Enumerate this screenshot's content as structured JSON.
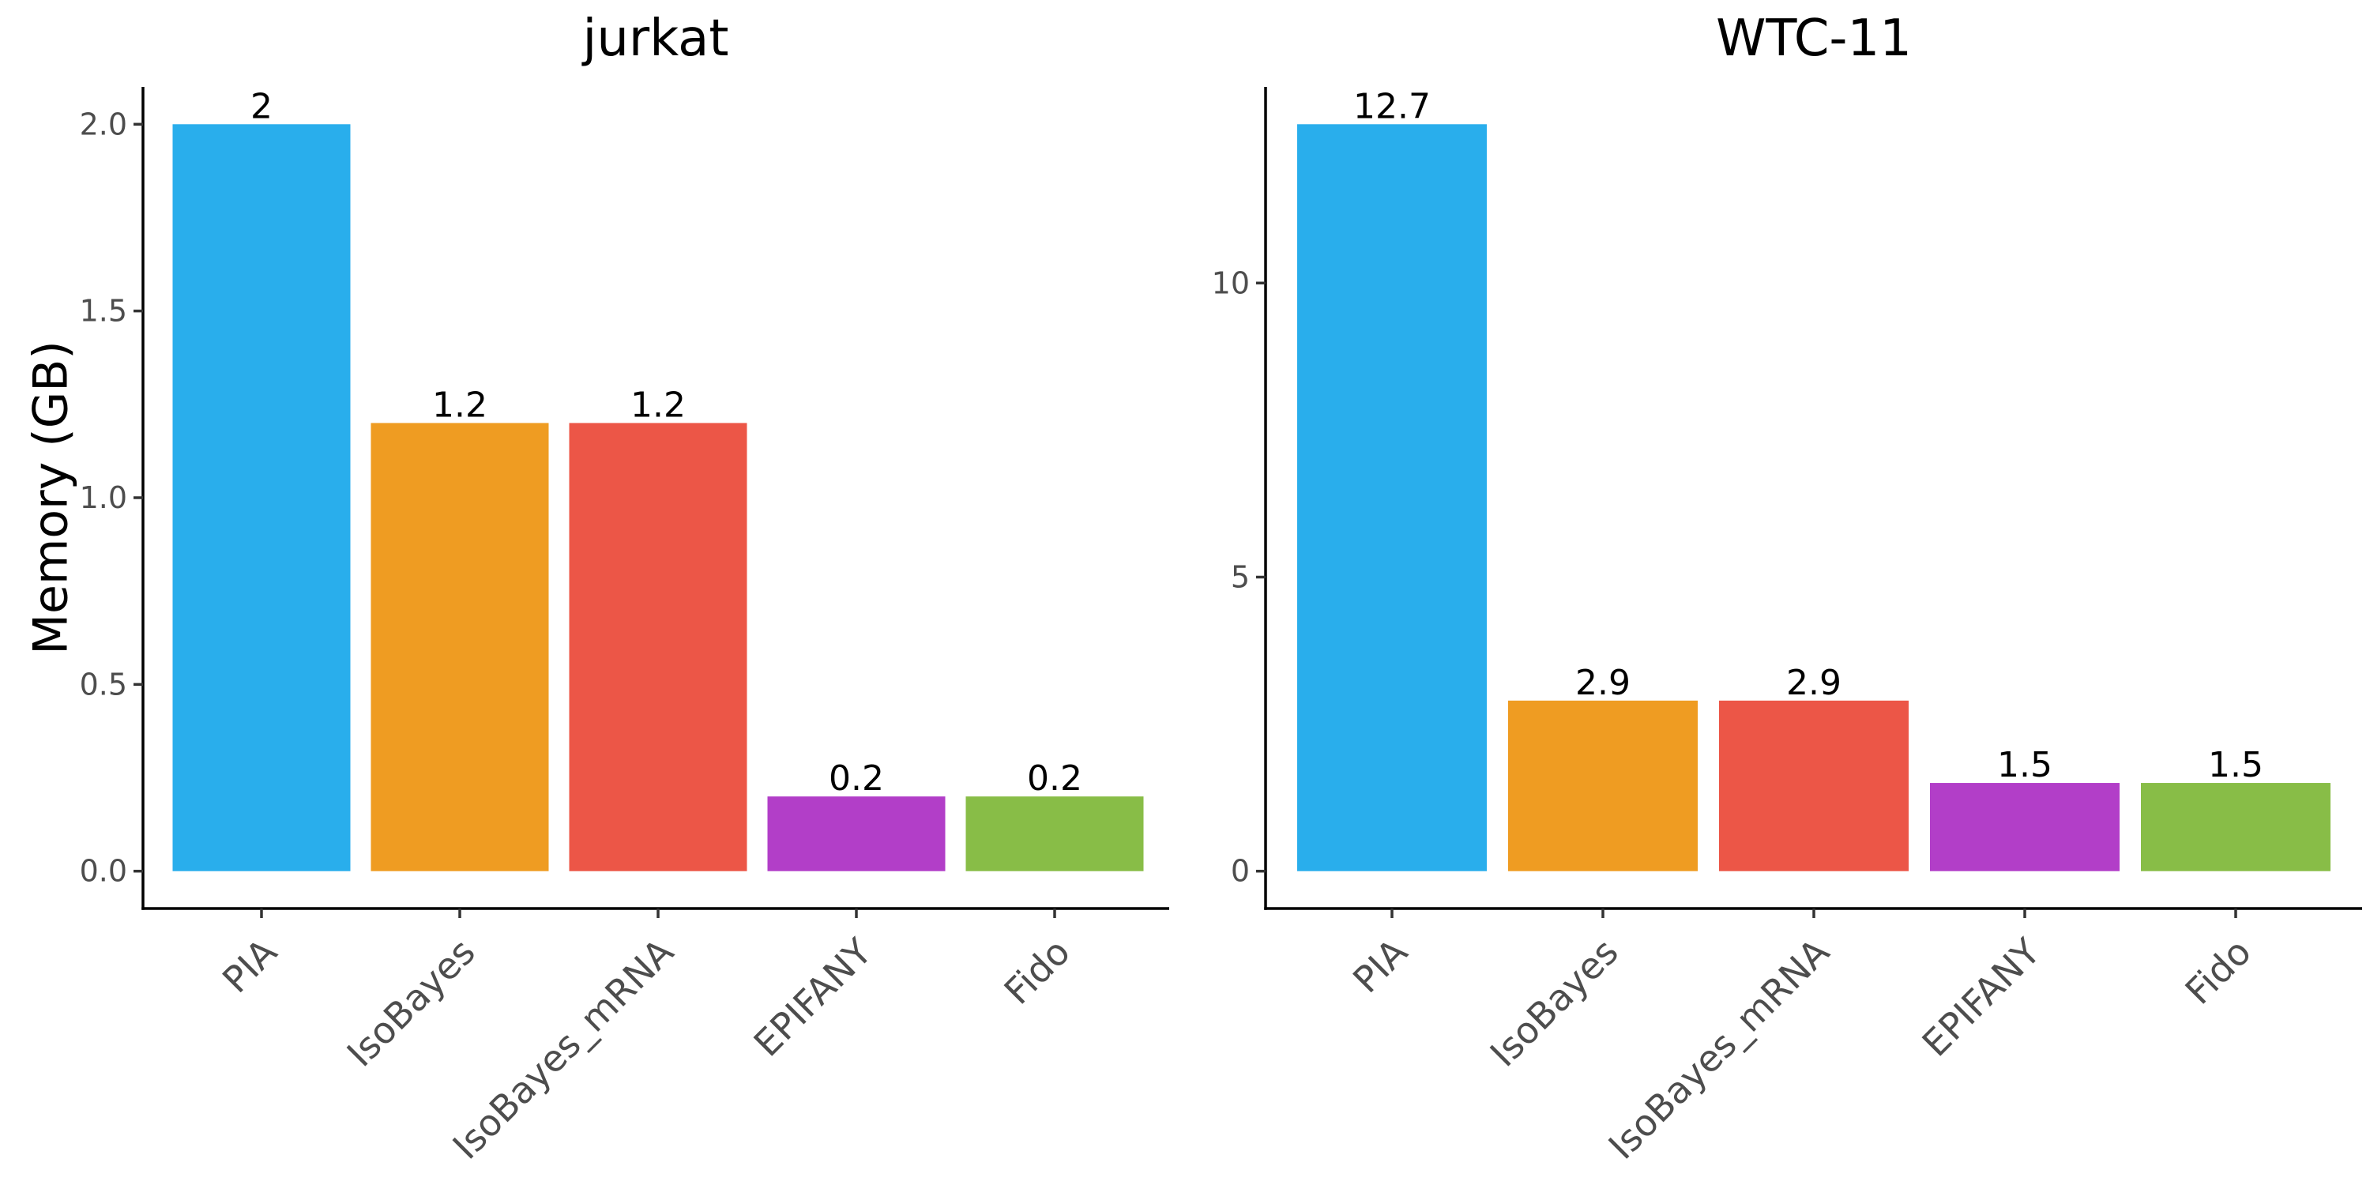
{
  "figure": {
    "ylabel": "Memory (GB)"
  },
  "chart_data": [
    {
      "type": "bar",
      "title": "jurkat",
      "xlabel": "",
      "ylabel": "Memory (GB)",
      "categories": [
        "PIA",
        "IsoBayes",
        "IsoBayes_mRNA",
        "EPIFANY",
        "Fido"
      ],
      "values": [
        2,
        1.2,
        1.2,
        0.2,
        0.2
      ],
      "data_labels": [
        "2",
        "1.2",
        "1.2",
        "0.2",
        "0.2"
      ],
      "colors": [
        "#29aeec",
        "#ef9c22",
        "#ec5647",
        "#b23ec8",
        "#88bd47"
      ],
      "yticks": [
        0.0,
        0.5,
        1.0,
        1.5,
        2.0
      ],
      "ytick_labels": [
        "0.0",
        "0.5",
        "1.0",
        "1.5",
        "2.0"
      ],
      "ylim": [
        -0.1,
        2.1
      ],
      "grid": false,
      "legend": "none"
    },
    {
      "type": "bar",
      "title": "WTC-11",
      "xlabel": "",
      "ylabel": "",
      "categories": [
        "PIA",
        "IsoBayes",
        "IsoBayes_mRNA",
        "EPIFANY",
        "Fido"
      ],
      "values": [
        12.7,
        2.9,
        2.9,
        1.5,
        1.5
      ],
      "data_labels": [
        "12.7",
        "2.9",
        "2.9",
        "1.5",
        "1.5"
      ],
      "colors": [
        "#29aeec",
        "#ef9c22",
        "#ec5647",
        "#b23ec8",
        "#88bd47"
      ],
      "yticks": [
        0,
        5,
        10
      ],
      "ytick_labels": [
        "0",
        "5",
        "10"
      ],
      "ylim": [
        -0.635,
        13.335
      ],
      "grid": false,
      "legend": "none"
    }
  ]
}
